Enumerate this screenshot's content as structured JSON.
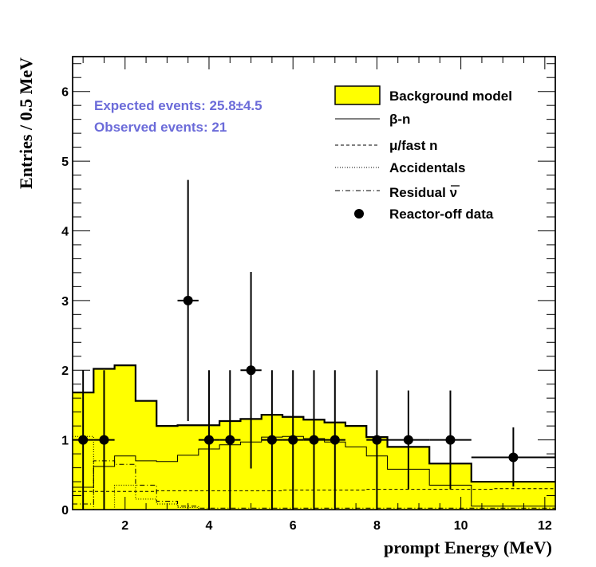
{
  "chart_data": {
    "type": "histogram",
    "xlabel": "prompt Energy (MeV)",
    "ylabel": "Entries / 0.5 MeV",
    "xlim": [
      0.75,
      12.25
    ],
    "ylim": [
      0,
      6.5
    ],
    "x_ticks": [
      2,
      4,
      6,
      8,
      10,
      12
    ],
    "y_ticks": [
      0,
      1,
      2,
      3,
      4,
      5,
      6
    ],
    "annotations": {
      "expected": "Expected events: 25.8±4.5",
      "observed": "Observed events: 21",
      "color": "#6b6bd9"
    },
    "legend": {
      "position": "top-right",
      "entries": [
        {
          "key": "background",
          "label": "Background model"
        },
        {
          "key": "beta_n",
          "label": "β-n"
        },
        {
          "key": "mu_fast_n",
          "label": "μ/fast n"
        },
        {
          "key": "accidentals",
          "label": "Accidentals"
        },
        {
          "key": "residual_nu",
          "label": "Residual ν"
        },
        {
          "key": "data",
          "label": "Reactor-off data"
        }
      ]
    },
    "colors": {
      "background_fill": "#ffff00",
      "line": "#000000"
    },
    "background_model": {
      "edges": [
        0.75,
        1.25,
        1.75,
        2.25,
        2.75,
        3.25,
        3.75,
        4.25,
        4.75,
        5.25,
        5.75,
        6.25,
        6.75,
        7.25,
        7.75,
        8.25,
        9.25,
        10.25,
        12.25
      ],
      "values": [
        1.68,
        2.02,
        2.07,
        1.56,
        1.2,
        1.21,
        1.21,
        1.27,
        1.3,
        1.36,
        1.33,
        1.29,
        1.25,
        1.2,
        1.04,
        0.9,
        0.66,
        0.4
      ]
    },
    "beta_n": {
      "edges": [
        0.75,
        1.25,
        1.75,
        2.25,
        2.75,
        3.25,
        3.75,
        4.25,
        4.75,
        5.25,
        5.75,
        6.25,
        6.75,
        7.25,
        7.75,
        8.25,
        9.25,
        10.25,
        12.25
      ],
      "values": [
        0.32,
        0.62,
        0.77,
        0.7,
        0.69,
        0.78,
        0.87,
        0.93,
        0.97,
        1.04,
        1.05,
        1.02,
        0.97,
        0.9,
        0.77,
        0.58,
        0.35,
        0.05
      ]
    },
    "mu_fast_n": {
      "edges": [
        0.75,
        1.75,
        2.75,
        3.75,
        4.75,
        5.75,
        6.75,
        7.75,
        8.75,
        9.75,
        10.75,
        12.25
      ],
      "values": [
        0.26,
        0.26,
        0.27,
        0.27,
        0.27,
        0.28,
        0.28,
        0.29,
        0.29,
        0.29,
        0.3
      ]
    },
    "accidentals": {
      "edges": [
        0.75,
        1.25,
        1.75,
        2.25,
        2.75,
        3.25,
        3.75,
        12.25
      ],
      "values": [
        1.05,
        0.0,
        0.35,
        0.15,
        0.08,
        0.03,
        0.0
      ]
    },
    "residual_nu": {
      "edges": [
        0.75,
        1.25,
        1.75,
        2.25,
        2.75,
        3.25,
        3.75,
        12.25
      ],
      "values": [
        0.08,
        0.7,
        0.65,
        0.35,
        0.12,
        0.05,
        0.02
      ]
    },
    "data_points": [
      {
        "x": 1.0,
        "y": 1,
        "xlo": 0.75,
        "xhi": 1.25,
        "ylo": 0.0,
        "yhi": 2.0
      },
      {
        "x": 1.5,
        "y": 1,
        "xlo": 1.25,
        "xhi": 1.75,
        "ylo": 0.0,
        "yhi": 2.0
      },
      {
        "x": 3.5,
        "y": 3,
        "xlo": 3.25,
        "xhi": 3.75,
        "ylo": 1.27,
        "yhi": 4.73
      },
      {
        "x": 4.0,
        "y": 1,
        "xlo": 3.75,
        "xhi": 4.25,
        "ylo": 0.0,
        "yhi": 2.0
      },
      {
        "x": 4.5,
        "y": 1,
        "xlo": 4.25,
        "xhi": 4.75,
        "ylo": 0.0,
        "yhi": 2.0
      },
      {
        "x": 5.0,
        "y": 2,
        "xlo": 4.75,
        "xhi": 5.25,
        "ylo": 0.59,
        "yhi": 3.41
      },
      {
        "x": 5.5,
        "y": 1,
        "xlo": 5.25,
        "xhi": 5.75,
        "ylo": 0.0,
        "yhi": 2.0
      },
      {
        "x": 6.0,
        "y": 1,
        "xlo": 5.75,
        "xhi": 6.25,
        "ylo": 0.0,
        "yhi": 2.0
      },
      {
        "x": 6.5,
        "y": 1,
        "xlo": 6.25,
        "xhi": 6.75,
        "ylo": 0.0,
        "yhi": 2.0
      },
      {
        "x": 7.0,
        "y": 1,
        "xlo": 6.75,
        "xhi": 7.25,
        "ylo": 0.0,
        "yhi": 2.0
      },
      {
        "x": 8.0,
        "y": 1,
        "xlo": 7.75,
        "xhi": 8.25,
        "ylo": 0.0,
        "yhi": 2.0
      },
      {
        "x": 8.75,
        "y": 1,
        "xlo": 8.25,
        "xhi": 9.25,
        "ylo": 0.29,
        "yhi": 1.71
      },
      {
        "x": 9.75,
        "y": 1,
        "xlo": 9.25,
        "xhi": 10.25,
        "ylo": 0.29,
        "yhi": 1.71
      },
      {
        "x": 11.25,
        "y": 0.75,
        "xlo": 10.25,
        "xhi": 12.25,
        "ylo": 0.33,
        "yhi": 1.18
      }
    ]
  }
}
